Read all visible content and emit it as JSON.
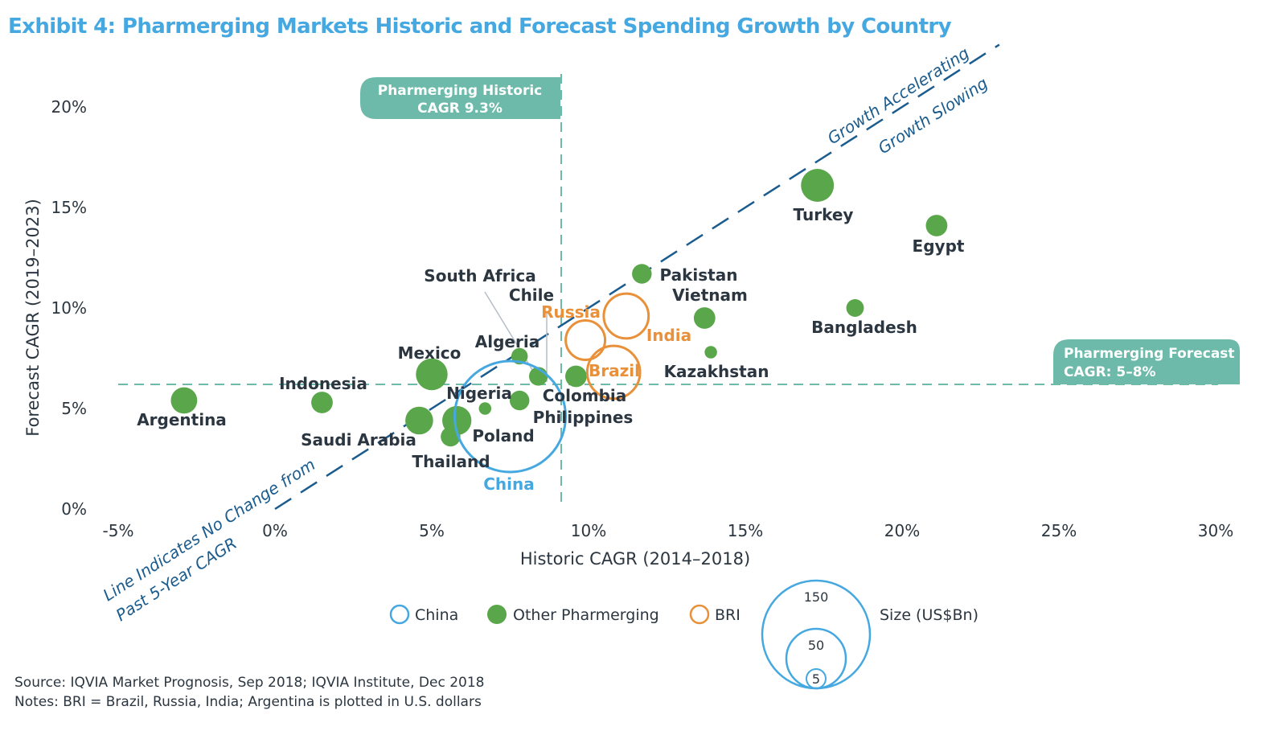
{
  "chart_data": {
    "type": "scatter",
    "title": "Exhibit 4: Pharmerging Markets Historic and Forecast Spending Growth by Country",
    "xlabel": "Historic CAGR (2014–2018)",
    "ylabel": "Forecast CAGR (2019–2023)",
    "xlim": [
      -5,
      30
    ],
    "ylim": [
      0,
      20
    ],
    "x_ticks": [
      -5,
      0,
      5,
      10,
      15,
      20,
      25,
      30
    ],
    "y_ticks": [
      0,
      5,
      10,
      15,
      20
    ],
    "x_tick_labels": [
      "-5%",
      "0%",
      "5%",
      "10%",
      "15%",
      "20%",
      "25%",
      "30%"
    ],
    "y_tick_labels": [
      "0%",
      "5%",
      "10%",
      "15%",
      "20%"
    ],
    "grid": false,
    "size_unit": "US$Bn",
    "series_colors": {
      "China": "#45a8e0",
      "Other Pharmerging": "#5aa64a",
      "BRI": "#e8903a"
    },
    "points": [
      {
        "name": "Argentina",
        "group": "Other Pharmerging",
        "x": -2.9,
        "y": 5.4,
        "size": 9
      },
      {
        "name": "Indonesia",
        "group": "Other Pharmerging",
        "x": 1.5,
        "y": 5.3,
        "size": 6
      },
      {
        "name": "Mexico",
        "group": "Other Pharmerging",
        "x": 5.0,
        "y": 6.7,
        "size": 13
      },
      {
        "name": "Saudi Arabia",
        "group": "Other Pharmerging",
        "x": 4.6,
        "y": 4.4,
        "size": 10
      },
      {
        "name": "Poland",
        "group": "Other Pharmerging",
        "x": 5.8,
        "y": 4.4,
        "size": 11
      },
      {
        "name": "Thailand",
        "group": "Other Pharmerging",
        "x": 5.6,
        "y": 3.6,
        "size": 5
      },
      {
        "name": "Nigeria",
        "group": "Other Pharmerging",
        "x": 6.7,
        "y": 5.0,
        "size": 2
      },
      {
        "name": "Philippines",
        "group": "Other Pharmerging",
        "x": 7.8,
        "y": 5.4,
        "size": 5
      },
      {
        "name": "Algeria",
        "group": "Other Pharmerging",
        "x": 7.8,
        "y": 7.6,
        "size": 3.5
      },
      {
        "name": "South Africa",
        "group": "Other Pharmerging",
        "x": 8.4,
        "y": 6.6,
        "size": 4.5
      },
      {
        "name": "Chile",
        "group": "Other Pharmerging",
        "x": 8.5,
        "y": 6.5,
        "size": 4
      },
      {
        "name": "Colombia",
        "group": "Other Pharmerging",
        "x": 9.6,
        "y": 6.6,
        "size": 6
      },
      {
        "name": "Pakistan",
        "group": "Other Pharmerging",
        "x": 11.7,
        "y": 11.7,
        "size": 5
      },
      {
        "name": "Vietnam",
        "group": "Other Pharmerging",
        "x": 13.7,
        "y": 9.5,
        "size": 6
      },
      {
        "name": "Kazakhstan",
        "group": "Other Pharmerging",
        "x": 13.9,
        "y": 7.8,
        "size": 2
      },
      {
        "name": "Turkey",
        "group": "Other Pharmerging",
        "x": 17.3,
        "y": 16.1,
        "size": 14
      },
      {
        "name": "Bangladesh",
        "group": "Other Pharmerging",
        "x": 18.5,
        "y": 10.0,
        "size": 4
      },
      {
        "name": "Egypt",
        "group": "Other Pharmerging",
        "x": 21.1,
        "y": 14.1,
        "size": 6
      },
      {
        "name": "China",
        "group": "China",
        "x": 7.5,
        "y": 4.6,
        "size": 160
      },
      {
        "name": "Russia",
        "group": "BRI",
        "x": 9.9,
        "y": 8.4,
        "size": 20
      },
      {
        "name": "Brazil",
        "group": "BRI",
        "x": 10.8,
        "y": 6.8,
        "size": 36
      },
      {
        "name": "India",
        "group": "BRI",
        "x": 11.2,
        "y": 9.6,
        "size": 26
      }
    ],
    "reference_lines": {
      "historic_cagr": {
        "value": 9.3,
        "label_line1": "Pharmerging Historic",
        "label_line2": "CAGR 9.3%"
      },
      "forecast_cagr": {
        "value": 6.2,
        "label_line1": "Pharmerging Forecast",
        "label_line2": "CAGR: 5–8%"
      },
      "no_change_line": {
        "from": [
          0,
          0
        ],
        "to": [
          23.1,
          23.1
        ]
      }
    },
    "annotations": {
      "accelerating": "Growth Accelerating",
      "slowing": "Growth Slowing",
      "no_change_line1": "Line Indicates No Change from",
      "no_change_line2": "Past 5-Year CAGR"
    },
    "legend": {
      "placement": "bottom",
      "items": [
        {
          "label": "China",
          "style": "hollow",
          "color": "#45a8e0"
        },
        {
          "label": "Other Pharmerging",
          "style": "filled",
          "color": "#5aa64a"
        },
        {
          "label": "BRI",
          "style": "hollow",
          "color": "#e8903a"
        }
      ],
      "size_title": "Size (US$Bn)",
      "size_values": [
        150,
        50,
        5
      ]
    }
  },
  "footer": {
    "source": "Source: IQVIA Market Prognosis, Sep 2018; IQVIA Institute, Dec 2018",
    "notes": "Notes: BRI = Brazil, Russia, India; Argentina is plotted in U.S. dollars"
  },
  "colors": {
    "title": "#45a8e0",
    "reference_box": "#6dbaaa",
    "diagonal": "#1b5c8e",
    "leader": "#b4bec8"
  }
}
